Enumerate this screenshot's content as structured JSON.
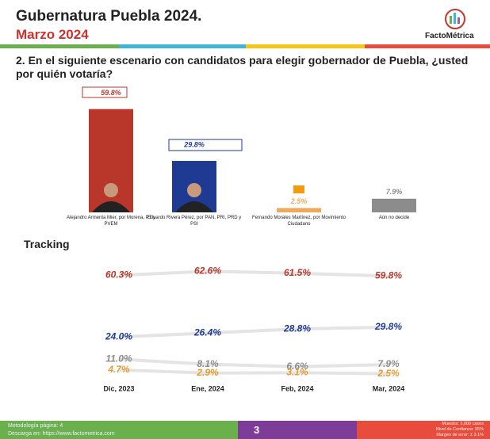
{
  "header": {
    "title": "Gubernatura Puebla 2024.",
    "subtitle": "Marzo 2024",
    "brand": "FactoMétrica"
  },
  "question": "2. En el siguiente escenario con candidatos para elegir gobernador de Puebla, ¿usted por quién votaría?",
  "chart_data": [
    {
      "type": "bar",
      "categories": [
        "Alejandro Armenta Mier, por Morena, PT y PVEM",
        "Eduardo Rivera Pérez, por PAN, PRI, PRD y PSI",
        "Fernando Morales Martínez, por Movimiento Ciudadano",
        "Aún no decide"
      ],
      "values": [
        59.8,
        29.8,
        2.5,
        7.9
      ],
      "value_labels": [
        "59.8%",
        "29.8%",
        "2.5%",
        "7.9%"
      ],
      "colors": [
        "#b8362a",
        "#1f3a93",
        "#f0a95a",
        "#8c8c8c"
      ]
    },
    {
      "type": "line",
      "title": "Tracking",
      "categories": [
        "Dic, 2023",
        "Ene, 2024",
        "Feb, 2024",
        "Mar, 2024"
      ],
      "series": [
        {
          "color": "#b8362a",
          "values": [
            60.3,
            62.6,
            61.5,
            59.8
          ],
          "value_labels": [
            "60.3%",
            "62.6%",
            "61.5%",
            "59.8%"
          ]
        },
        {
          "color": "#1f3a93",
          "values": [
            24.0,
            26.4,
            28.8,
            29.8
          ],
          "value_labels": [
            "24.0%",
            "26.4%",
            "28.8%",
            "29.8%"
          ]
        },
        {
          "color": "#8c8c8c",
          "values": [
            11.0,
            8.1,
            6.6,
            7.9
          ],
          "value_labels": [
            "11.0%",
            "8.1%",
            "6.6%",
            "7.9%"
          ]
        },
        {
          "color": "#e69a2e",
          "values": [
            4.7,
            2.9,
            3.1,
            2.5
          ],
          "value_labels": [
            "4.7%",
            "2.9%",
            "3.1%",
            "2.5%"
          ]
        }
      ]
    }
  ],
  "footer": {
    "left": [
      "Metodología página: 4",
      "Descarga en: https://www.factometrica.com"
    ],
    "page": "3",
    "right": [
      "Muestra: 2,000 casos",
      "Nivel de Confianza: 95%",
      "Margen de error: ± 3.1%"
    ]
  }
}
